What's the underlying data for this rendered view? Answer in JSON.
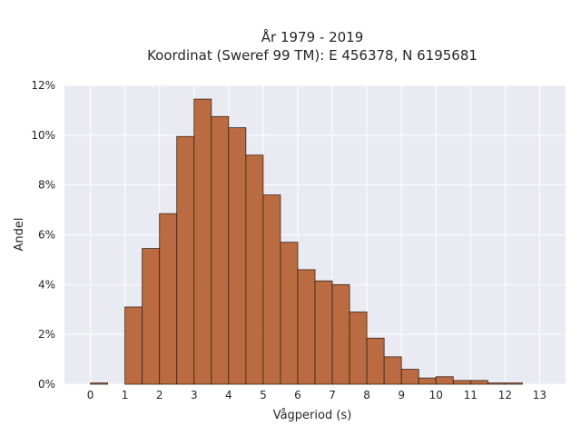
{
  "chart_data": {
    "type": "bar",
    "title_lines": [
      "År 1979 - 2019",
      "Koordinat (Sweref 99 TM): E 456378, N 6195681"
    ],
    "xlabel": "Vågperiod (s)",
    "ylabel": "Andel",
    "bin_width": 0.5,
    "bin_starts": [
      0,
      0.5,
      1,
      1.5,
      2,
      2.5,
      3,
      3.5,
      4,
      4.5,
      5,
      5.5,
      6,
      6.5,
      7,
      7.5,
      8,
      8.5,
      9,
      9.5,
      10,
      10.5,
      11,
      11.5,
      12,
      12.5
    ],
    "values": [
      0.05,
      0,
      3.1,
      5.45,
      6.85,
      9.95,
      11.45,
      10.75,
      10.3,
      9.2,
      7.6,
      5.7,
      4.6,
      4.15,
      4.0,
      2.9,
      1.85,
      1.1,
      0.6,
      0.25,
      0.3,
      0.15,
      0.15,
      0.05,
      0.05,
      0
    ],
    "xlim": [
      -0.75,
      13.75
    ],
    "ylim": [
      0,
      12
    ],
    "x_ticks": [
      "0",
      "1",
      "2",
      "3",
      "4",
      "5",
      "6",
      "7",
      "8",
      "9",
      "10",
      "11",
      "12",
      "13"
    ],
    "y_ticks": [
      "0%",
      "2%",
      "4%",
      "6%",
      "8%",
      "10%",
      "12%"
    ],
    "grid": true,
    "colors": {
      "bar_fill": "#b55d2e",
      "bar_edge": "#3a2418",
      "plot_bg": "#eaeaf2",
      "grid": "#ffffff"
    }
  }
}
